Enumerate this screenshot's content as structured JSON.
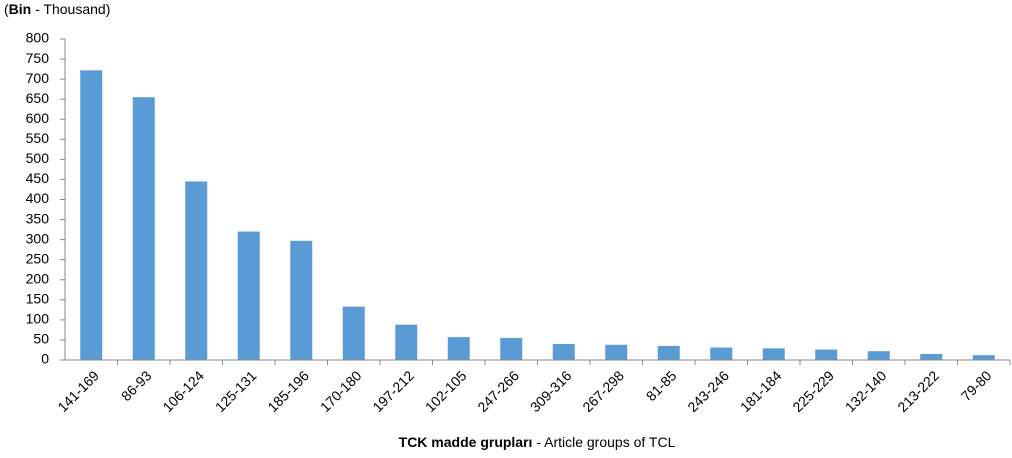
{
  "chart_data": {
    "type": "bar",
    "y_label": [
      "(",
      "Bin",
      " - Thousand)"
    ],
    "x_label": [
      "TCK madde grupları",
      " - Article groups of TCL"
    ],
    "categories": [
      "141-169",
      "86-93",
      "106-124",
      "125-131",
      "185-196",
      "170-180",
      "197-212",
      "102-105",
      "247-266",
      "309-316",
      "267-298",
      "81-85",
      "243-246",
      "181-184",
      "225-229",
      "132-140",
      "213-222",
      "79-80"
    ],
    "values": [
      722,
      655,
      445,
      320,
      297,
      133,
      88,
      57,
      55,
      40,
      38,
      35,
      31,
      29,
      26,
      22,
      15,
      12
    ],
    "color": "#5b9bd5",
    "ylim": [
      0,
      800
    ],
    "yticks": [
      0,
      50,
      100,
      150,
      200,
      250,
      300,
      350,
      400,
      450,
      500,
      550,
      600,
      650,
      700,
      750,
      800
    ],
    "grid": false
  }
}
